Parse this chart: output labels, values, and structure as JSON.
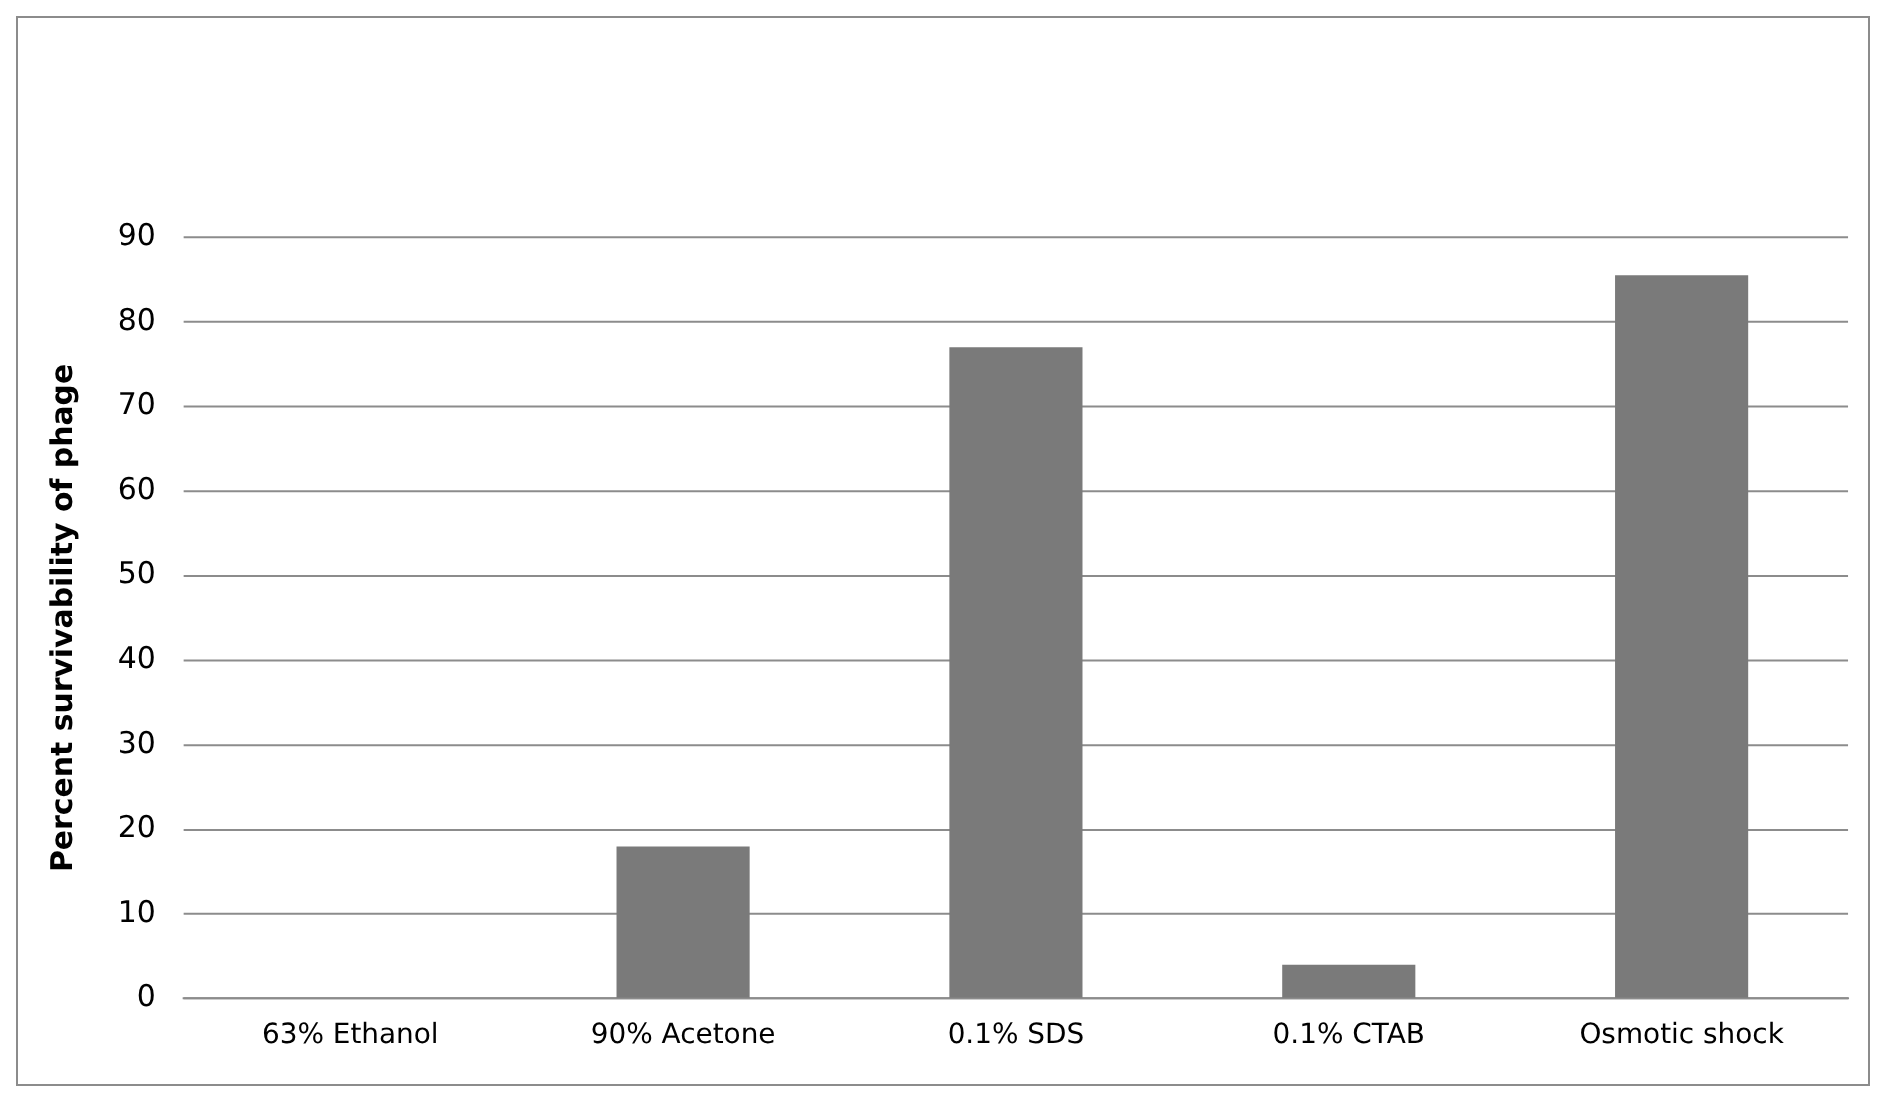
{
  "chart_data": {
    "type": "bar",
    "ylabel": "Percent survivability of phage",
    "categories": [
      "63% Ethanol",
      "90% Acetone",
      "0.1% SDS",
      "0.1% CTAB",
      "Osmotic shock"
    ],
    "values": [
      0,
      18,
      77,
      4,
      85.5
    ],
    "color": "#7a7a7a",
    "ylim": [
      0,
      90
    ],
    "yticks": [
      0,
      10,
      20,
      30,
      40,
      50,
      60,
      70,
      80,
      90
    ],
    "grid": "y",
    "legend": false
  }
}
